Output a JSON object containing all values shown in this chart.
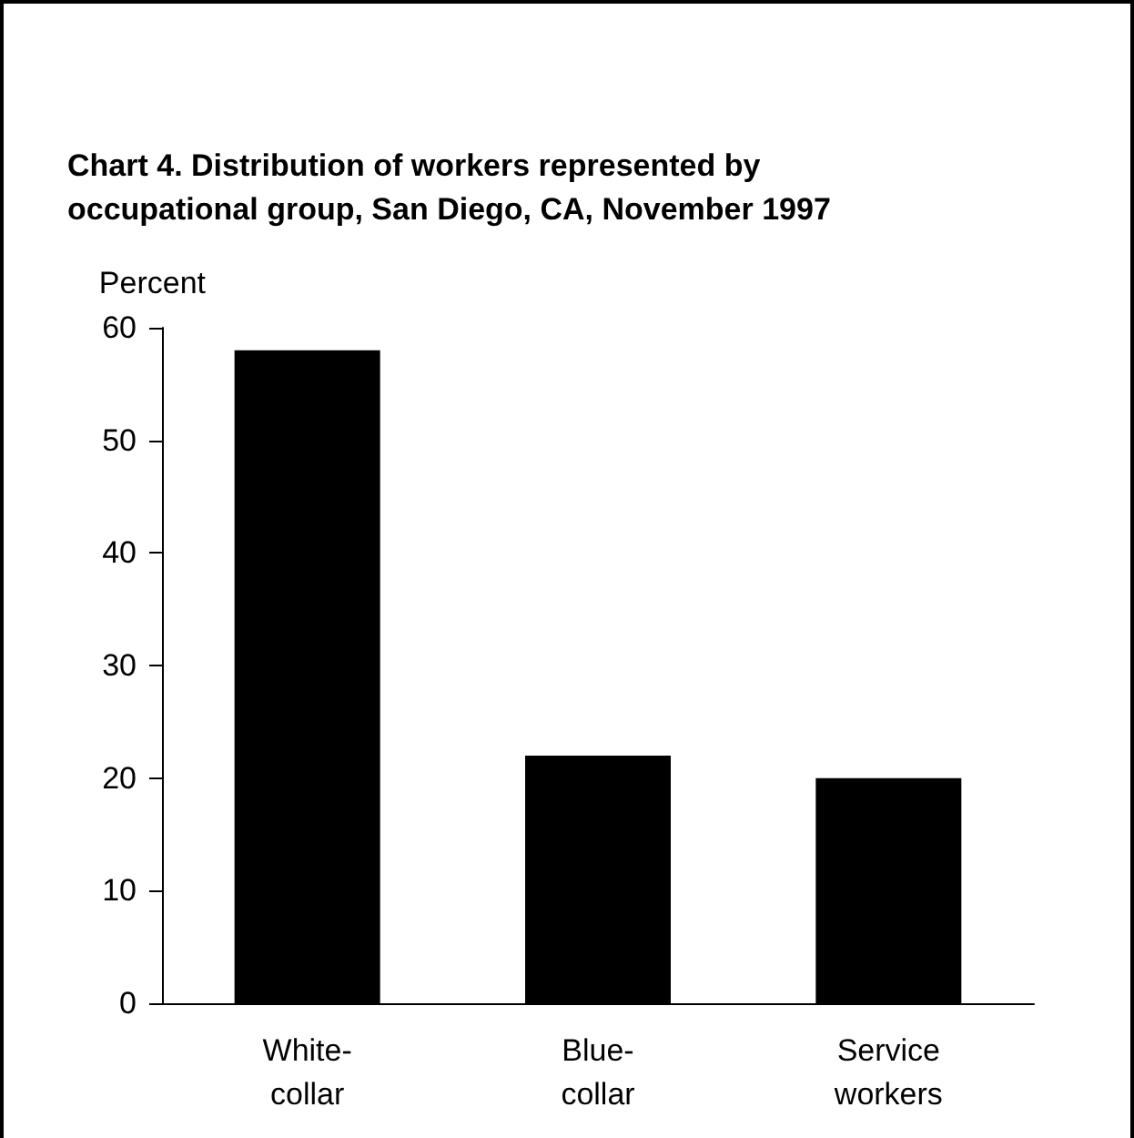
{
  "chart_data": {
    "type": "bar",
    "title": "Chart 4. Distribution of workers represented by\noccupational group, San Diego, CA, November 1997",
    "ylabel": "Percent",
    "categories": [
      "White-\ncollar",
      "Blue-\ncollar",
      "Service\nworkers"
    ],
    "values": [
      58,
      22,
      20
    ],
    "color": "#000000",
    "ylim": [
      0,
      60
    ],
    "yticks": [
      0,
      10,
      20,
      30,
      40,
      50,
      60
    ],
    "grid": false
  }
}
